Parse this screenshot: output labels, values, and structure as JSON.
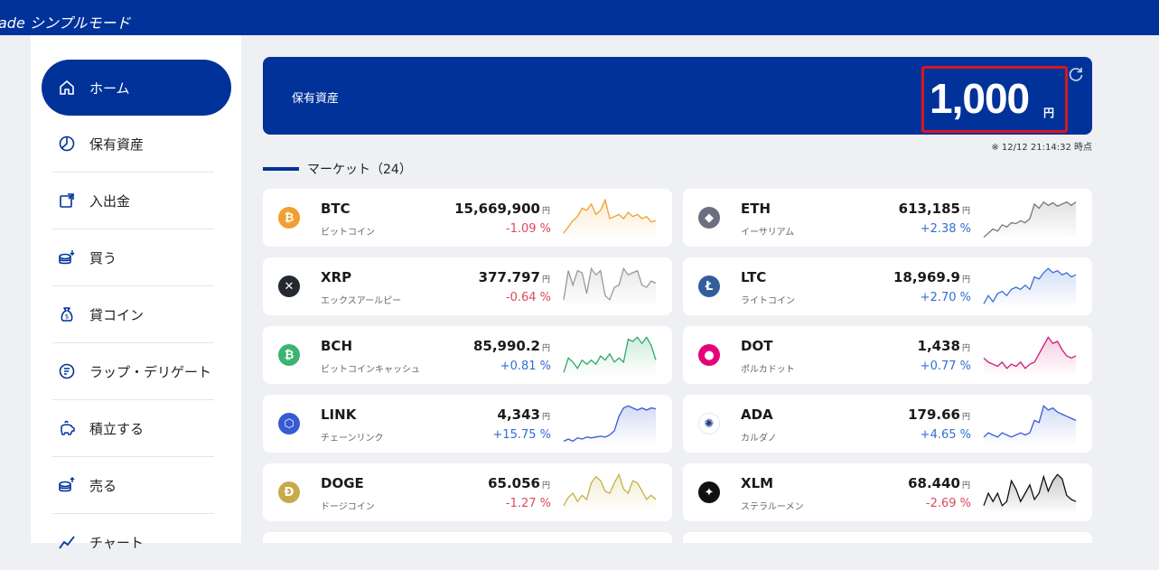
{
  "header": {
    "brand": "ade シンプルモード"
  },
  "sidebar": {
    "items": [
      {
        "label": "ホーム",
        "icon": "home-icon",
        "active": true
      },
      {
        "label": "保有資産",
        "icon": "pie-chart-icon"
      },
      {
        "label": "入出金",
        "icon": "transfer-icon"
      },
      {
        "label": "買う",
        "icon": "coins-buy-icon"
      },
      {
        "label": "貸コイン",
        "icon": "money-bag-icon"
      },
      {
        "label": "ラップ・デリゲート",
        "icon": "wrap-coin-icon"
      },
      {
        "label": "積立する",
        "icon": "piggy-bank-icon"
      },
      {
        "label": "売る",
        "icon": "coins-sell-icon"
      },
      {
        "label": "チャート",
        "icon": "chart-line-icon"
      }
    ]
  },
  "assets": {
    "label": "保有資産",
    "amount": "1,000",
    "unit": "円",
    "timestamp": "※ 12/12 21:14:32 時点"
  },
  "market": {
    "title": "マーケット（24）",
    "coins": [
      {
        "symbol": "BTC",
        "name": "ビットコイン",
        "price": "15,669,900",
        "unit": "円",
        "change": "-1.09 %",
        "dir": "neg",
        "icon": "bitcoin-icon",
        "glyph": "₿",
        "color": "#f0a030",
        "line": "#f0a030",
        "spark": [
          0.15,
          0.3,
          0.45,
          0.55,
          0.75,
          0.7,
          0.85,
          0.6,
          0.7,
          0.95,
          0.5,
          0.55,
          0.6,
          0.5,
          0.65,
          0.55,
          0.6,
          0.5,
          0.55,
          0.42,
          0.45
        ]
      },
      {
        "symbol": "ETH",
        "name": "イーサリアム",
        "price": "613,185",
        "unit": "円",
        "change": "+2.38 %",
        "dir": "pos",
        "icon": "ethereum-icon",
        "glyph": "◆",
        "color": "#6b6f80",
        "line": "#777777",
        "spark": [
          0.05,
          0.15,
          0.25,
          0.2,
          0.35,
          0.3,
          0.4,
          0.38,
          0.45,
          0.4,
          0.5,
          0.85,
          0.75,
          0.9,
          0.82,
          0.88,
          0.8,
          0.85,
          0.9,
          0.82,
          0.9
        ]
      },
      {
        "symbol": "XRP",
        "name": "エックスアールピー",
        "price": "377.797",
        "unit": "円",
        "change": "-0.64 %",
        "dir": "neg",
        "icon": "xrp-icon",
        "glyph": "✕",
        "color": "#23292f",
        "line": "#999999",
        "spark": [
          0.2,
          0.9,
          0.55,
          0.9,
          0.85,
          0.35,
          0.95,
          0.8,
          0.9,
          0.3,
          0.2,
          0.5,
          0.55,
          0.95,
          0.8,
          0.85,
          0.9,
          0.55,
          0.5,
          0.65,
          0.6
        ]
      },
      {
        "symbol": "LTC",
        "name": "ライトコイン",
        "price": "18,969.9",
        "unit": "円",
        "change": "+2.70 %",
        "dir": "pos",
        "icon": "litecoin-icon",
        "glyph": "Ł",
        "color": "#345d9d",
        "line": "#3a6fd8",
        "spark": [
          0.1,
          0.3,
          0.15,
          0.35,
          0.4,
          0.3,
          0.45,
          0.5,
          0.45,
          0.55,
          0.45,
          0.75,
          0.7,
          0.85,
          0.95,
          0.85,
          0.9,
          0.8,
          0.85,
          0.75,
          0.8
        ]
      },
      {
        "symbol": "BCH",
        "name": "ビットコインキャッシュ",
        "price": "85,990.2",
        "unit": "円",
        "change": "+0.81 %",
        "dir": "pos",
        "icon": "bitcoin-cash-icon",
        "glyph": "₿",
        "color": "#3cb371",
        "line": "#2eaa6a",
        "spark": [
          0.1,
          0.45,
          0.35,
          0.2,
          0.4,
          0.3,
          0.4,
          0.3,
          0.5,
          0.4,
          0.55,
          0.35,
          0.45,
          0.35,
          0.9,
          0.85,
          0.95,
          0.8,
          0.95,
          0.75,
          0.4
        ]
      },
      {
        "symbol": "DOT",
        "name": "ポルカドット",
        "price": "1,438",
        "unit": "円",
        "change": "+0.77 %",
        "dir": "pos",
        "icon": "polkadot-icon",
        "glyph": "●",
        "color": "#e6007a",
        "line": "#d4177a",
        "spark": [
          0.45,
          0.35,
          0.3,
          0.25,
          0.35,
          0.2,
          0.3,
          0.25,
          0.35,
          0.2,
          0.3,
          0.35,
          0.55,
          0.75,
          0.95,
          0.8,
          0.85,
          0.65,
          0.5,
          0.45,
          0.5
        ]
      },
      {
        "symbol": "LINK",
        "name": "チェーンリンク",
        "price": "4,343",
        "unit": "円",
        "change": "+15.75 %",
        "dir": "pos",
        "icon": "chainlink-icon",
        "glyph": "⬡",
        "color": "#375bd2",
        "line": "#3a5bd2",
        "spark": [
          0.1,
          0.15,
          0.1,
          0.18,
          0.15,
          0.2,
          0.18,
          0.2,
          0.22,
          0.2,
          0.25,
          0.35,
          0.7,
          0.9,
          0.95,
          0.9,
          0.85,
          0.9,
          0.85,
          0.9,
          0.88
        ]
      },
      {
        "symbol": "ADA",
        "name": "カルダノ",
        "price": "179.66",
        "unit": "円",
        "change": "+4.65 %",
        "dir": "pos",
        "icon": "cardano-icon",
        "glyph": "✺",
        "color": "#ffffff",
        "line": "#3a5bd2",
        "spark": [
          0.2,
          0.3,
          0.25,
          0.2,
          0.3,
          0.25,
          0.2,
          0.25,
          0.3,
          0.25,
          0.3,
          0.6,
          0.55,
          0.95,
          0.85,
          0.9,
          0.8,
          0.75,
          0.7,
          0.65,
          0.6
        ]
      },
      {
        "symbol": "DOGE",
        "name": "ドージコイン",
        "price": "65.056",
        "unit": "円",
        "change": "-1.27 %",
        "dir": "neg",
        "icon": "dogecoin-icon",
        "glyph": "Ð",
        "color": "#c8a94a",
        "line": "#c8b040",
        "spark": [
          0.2,
          0.4,
          0.5,
          0.3,
          0.45,
          0.35,
          0.75,
          0.9,
          0.8,
          0.55,
          0.5,
          0.75,
          0.95,
          0.6,
          0.5,
          0.8,
          0.75,
          0.55,
          0.35,
          0.45,
          0.35
        ]
      },
      {
        "symbol": "XLM",
        "name": "ステラルーメン",
        "price": "68.440",
        "unit": "円",
        "change": "-2.69 %",
        "dir": "neg",
        "icon": "stellar-icon",
        "glyph": "✦",
        "color": "#111111",
        "line": "#111111",
        "spark": [
          0.2,
          0.5,
          0.3,
          0.5,
          0.2,
          0.3,
          0.8,
          0.6,
          0.3,
          0.5,
          0.7,
          0.35,
          0.5,
          0.9,
          0.55,
          0.8,
          0.95,
          0.85,
          0.45,
          0.35,
          0.3
        ]
      }
    ]
  }
}
